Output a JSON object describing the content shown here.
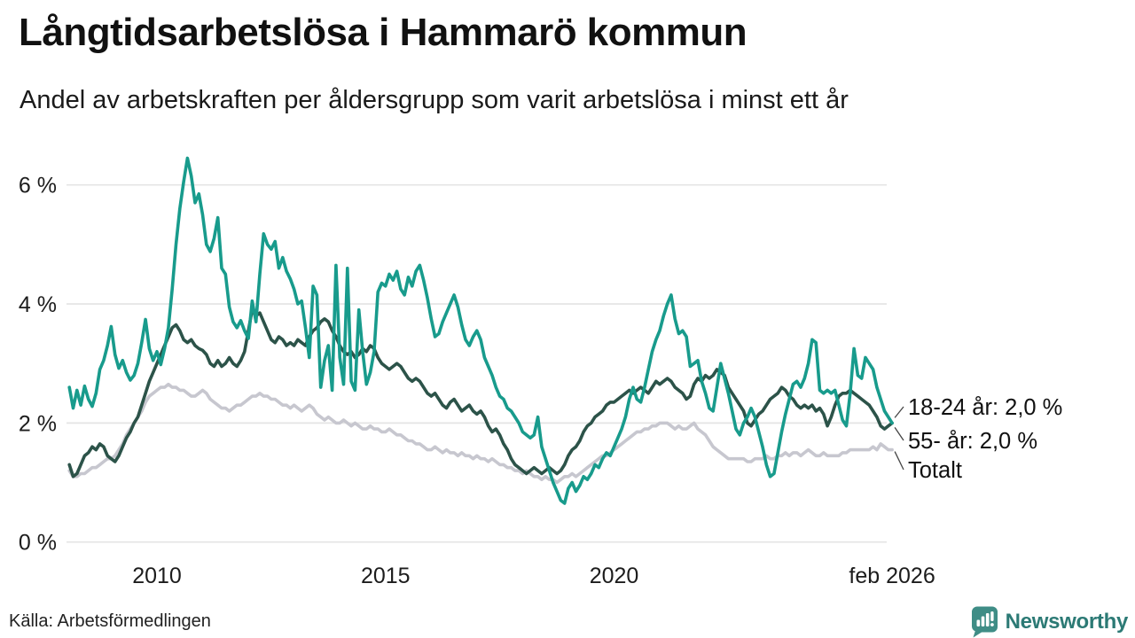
{
  "header": {
    "title": "Långtidsarbetslösa i Hammarö kommun",
    "subtitle": "Andel av arbetskraften per åldersgrupp som varit arbetslösa i minst ett år"
  },
  "footer": {
    "source": "Källa: Arbetsförmedlingen",
    "brand": "Newsworthy"
  },
  "colors": {
    "accent_teal": "#189b8c",
    "dark_green": "#2c5349",
    "light_gray": "#c7c7cf",
    "gridline": "#e4e4e4",
    "text": "#1c1c1c",
    "leader_line": "#444444",
    "logo_bubble": "#3f8d86",
    "logo_text": "#2c7a75"
  },
  "chart_data": {
    "type": "line",
    "title": "Långtidsarbetslösa i Hammarö kommun",
    "subtitle": "Andel av arbetskraften per åldersgrupp som varit arbetslösa i minst ett år",
    "xlabel": "",
    "ylabel": "",
    "x_start": 2008.0833,
    "x_step": 0.0833333,
    "x_end": 2026.0833,
    "ylim": [
      0,
      6.8
    ],
    "grid": "horizontal",
    "legend_position": "right-annotations",
    "yticks": [
      {
        "value": 0,
        "label": "0 %"
      },
      {
        "value": 2,
        "label": "2 %"
      },
      {
        "value": 4,
        "label": "4 %"
      },
      {
        "value": 6,
        "label": "6 %"
      }
    ],
    "xticks": [
      {
        "value": 2010,
        "label": "2010"
      },
      {
        "value": 2015,
        "label": "2015"
      },
      {
        "value": 2020,
        "label": "2020"
      },
      {
        "value": 2026.0833,
        "label": "feb 2026"
      }
    ],
    "series": [
      {
        "name": "18-24 år",
        "annotation": "18-24 år: 2,0 %",
        "last_value": "2,0 %",
        "color": "#189b8c",
        "values": [
          2.6,
          2.25,
          2.55,
          2.3,
          2.62,
          2.4,
          2.28,
          2.5,
          2.9,
          3.05,
          3.3,
          3.62,
          3.15,
          2.92,
          3.05,
          2.85,
          2.72,
          2.8,
          3.0,
          3.35,
          3.74,
          3.25,
          3.05,
          3.2,
          2.98,
          3.25,
          3.6,
          4.25,
          5.0,
          5.6,
          6.05,
          6.45,
          6.15,
          5.7,
          5.85,
          5.5,
          5.0,
          4.88,
          5.1,
          5.45,
          4.6,
          4.5,
          3.95,
          3.7,
          3.6,
          3.72,
          3.55,
          3.42,
          4.05,
          3.7,
          4.5,
          5.18,
          5.0,
          4.92,
          5.05,
          4.6,
          4.78,
          4.55,
          4.42,
          4.25,
          4.0,
          4.05,
          3.6,
          3.1,
          4.3,
          4.15,
          2.6,
          3.05,
          3.3,
          2.55,
          4.65,
          3.1,
          2.65,
          4.6,
          2.7,
          2.55,
          3.9,
          3.2,
          2.65,
          2.85,
          3.2,
          4.2,
          4.35,
          4.3,
          4.5,
          4.4,
          4.55,
          4.25,
          4.15,
          4.45,
          4.3,
          4.55,
          4.65,
          4.4,
          4.1,
          3.75,
          3.45,
          3.5,
          3.7,
          3.85,
          4.0,
          4.15,
          3.95,
          3.65,
          3.4,
          3.3,
          3.45,
          3.55,
          3.4,
          3.1,
          2.95,
          2.8,
          2.6,
          2.45,
          2.4,
          2.25,
          2.2,
          2.1,
          2.0,
          1.85,
          1.8,
          1.75,
          1.8,
          2.1,
          1.6,
          1.4,
          1.2,
          1.0,
          0.85,
          0.7,
          0.65,
          0.9,
          1.0,
          0.85,
          0.95,
          1.1,
          1.05,
          1.15,
          1.3,
          1.25,
          1.4,
          1.5,
          1.45,
          1.6,
          1.75,
          1.9,
          2.1,
          2.4,
          2.6,
          2.4,
          2.35,
          2.6,
          2.9,
          3.2,
          3.4,
          3.55,
          3.8,
          4.0,
          4.15,
          3.75,
          3.5,
          3.55,
          3.45,
          2.95,
          3.0,
          3.05,
          2.7,
          2.5,
          2.25,
          2.2,
          2.6,
          3.0,
          2.75,
          2.5,
          2.2,
          1.9,
          1.8,
          2.0,
          2.1,
          2.25,
          2.1,
          1.85,
          1.6,
          1.3,
          1.1,
          1.15,
          1.5,
          1.85,
          2.15,
          2.4,
          2.65,
          2.7,
          2.6,
          2.75,
          3.0,
          3.4,
          3.35,
          2.55,
          2.5,
          2.55,
          2.5,
          2.55,
          2.3,
          2.05,
          1.95,
          2.5,
          3.25,
          2.8,
          2.75,
          3.1,
          3.0,
          2.9,
          2.6,
          2.4,
          2.2,
          2.1,
          2.0
        ]
      },
      {
        "name": "55- år",
        "annotation": "55- år: 2,0 %",
        "last_value": "2,0 %",
        "color": "#2c5349",
        "values": [
          1.3,
          1.1,
          1.15,
          1.3,
          1.45,
          1.5,
          1.6,
          1.55,
          1.65,
          1.6,
          1.45,
          1.4,
          1.35,
          1.45,
          1.6,
          1.75,
          1.85,
          2.0,
          2.1,
          2.3,
          2.5,
          2.7,
          2.85,
          3.0,
          3.15,
          3.3,
          3.45,
          3.6,
          3.65,
          3.55,
          3.4,
          3.35,
          3.4,
          3.3,
          3.25,
          3.22,
          3.15,
          3.0,
          2.95,
          3.05,
          2.95,
          3.0,
          3.1,
          3.0,
          2.95,
          3.05,
          3.2,
          3.55,
          3.9,
          3.8,
          3.85,
          3.7,
          3.55,
          3.4,
          3.35,
          3.45,
          3.4,
          3.3,
          3.35,
          3.3,
          3.4,
          3.35,
          3.3,
          3.45,
          3.55,
          3.6,
          3.7,
          3.75,
          3.7,
          3.55,
          3.45,
          3.3,
          3.2,
          3.15,
          3.2,
          3.1,
          3.15,
          3.25,
          3.2,
          3.3,
          3.25,
          3.1,
          3.0,
          2.95,
          2.9,
          2.95,
          3.0,
          2.95,
          2.85,
          2.75,
          2.7,
          2.75,
          2.7,
          2.6,
          2.5,
          2.45,
          2.5,
          2.4,
          2.3,
          2.25,
          2.35,
          2.4,
          2.3,
          2.2,
          2.25,
          2.3,
          2.2,
          2.15,
          2.2,
          2.1,
          1.95,
          1.85,
          1.9,
          1.8,
          1.65,
          1.55,
          1.4,
          1.3,
          1.25,
          1.2,
          1.15,
          1.2,
          1.25,
          1.2,
          1.15,
          1.2,
          1.25,
          1.2,
          1.15,
          1.2,
          1.3,
          1.45,
          1.55,
          1.6,
          1.7,
          1.85,
          1.95,
          2.0,
          2.1,
          2.15,
          2.2,
          2.3,
          2.35,
          2.35,
          2.4,
          2.45,
          2.5,
          2.55,
          2.5,
          2.55,
          2.6,
          2.55,
          2.5,
          2.6,
          2.7,
          2.65,
          2.7,
          2.75,
          2.7,
          2.6,
          2.55,
          2.5,
          2.4,
          2.45,
          2.65,
          2.75,
          2.7,
          2.8,
          2.75,
          2.8,
          2.9,
          2.85,
          2.8,
          2.6,
          2.5,
          2.4,
          2.3,
          2.2,
          2.0,
          1.95,
          2.05,
          2.15,
          2.2,
          2.3,
          2.4,
          2.45,
          2.5,
          2.6,
          2.55,
          2.45,
          2.4,
          2.3,
          2.25,
          2.3,
          2.25,
          2.3,
          2.2,
          2.25,
          2.15,
          1.95,
          2.1,
          2.3,
          2.45,
          2.5,
          2.5,
          2.55,
          2.5,
          2.45,
          2.4,
          2.35,
          2.3,
          2.2,
          2.1,
          1.95,
          1.9,
          1.95,
          2.0
        ]
      },
      {
        "name": "Totalt",
        "annotation": "Totalt",
        "last_value": "1,55 %",
        "color": "#c7c7cf",
        "values": [
          1.2,
          1.1,
          1.1,
          1.15,
          1.15,
          1.2,
          1.25,
          1.25,
          1.3,
          1.35,
          1.4,
          1.4,
          1.45,
          1.55,
          1.65,
          1.8,
          1.9,
          2.0,
          2.1,
          2.2,
          2.35,
          2.45,
          2.5,
          2.55,
          2.6,
          2.6,
          2.65,
          2.6,
          2.6,
          2.55,
          2.55,
          2.5,
          2.45,
          2.45,
          2.5,
          2.55,
          2.5,
          2.4,
          2.35,
          2.3,
          2.25,
          2.25,
          2.2,
          2.25,
          2.3,
          2.3,
          2.35,
          2.4,
          2.45,
          2.45,
          2.5,
          2.45,
          2.45,
          2.4,
          2.4,
          2.35,
          2.3,
          2.3,
          2.25,
          2.3,
          2.25,
          2.2,
          2.25,
          2.3,
          2.25,
          2.15,
          2.1,
          2.05,
          2.1,
          2.05,
          2.0,
          2.0,
          2.05,
          2.0,
          1.95,
          2.0,
          1.95,
          1.9,
          1.9,
          1.95,
          1.9,
          1.9,
          1.85,
          1.85,
          1.9,
          1.85,
          1.8,
          1.8,
          1.75,
          1.7,
          1.7,
          1.65,
          1.65,
          1.6,
          1.55,
          1.55,
          1.6,
          1.55,
          1.5,
          1.55,
          1.5,
          1.5,
          1.45,
          1.5,
          1.45,
          1.45,
          1.4,
          1.45,
          1.4,
          1.4,
          1.35,
          1.4,
          1.35,
          1.3,
          1.3,
          1.25,
          1.25,
          1.2,
          1.2,
          1.15,
          1.2,
          1.15,
          1.1,
          1.1,
          1.05,
          1.1,
          1.05,
          1.05,
          1.0,
          1.05,
          1.1,
          1.1,
          1.15,
          1.1,
          1.15,
          1.2,
          1.25,
          1.3,
          1.35,
          1.4,
          1.45,
          1.45,
          1.5,
          1.55,
          1.6,
          1.65,
          1.7,
          1.75,
          1.8,
          1.85,
          1.85,
          1.9,
          1.9,
          1.95,
          1.95,
          2.0,
          2.0,
          2.0,
          1.95,
          1.9,
          1.95,
          1.9,
          1.9,
          1.95,
          2.0,
          1.9,
          1.85,
          1.8,
          1.7,
          1.6,
          1.55,
          1.5,
          1.45,
          1.4,
          1.4,
          1.4,
          1.4,
          1.4,
          1.35,
          1.35,
          1.4,
          1.4,
          1.4,
          1.45,
          1.4,
          1.4,
          1.45,
          1.45,
          1.5,
          1.45,
          1.5,
          1.5,
          1.45,
          1.5,
          1.55,
          1.5,
          1.45,
          1.45,
          1.5,
          1.45,
          1.45,
          1.45,
          1.45,
          1.5,
          1.5,
          1.55,
          1.55,
          1.55,
          1.55,
          1.55,
          1.55,
          1.6,
          1.55,
          1.65,
          1.6,
          1.55,
          1.55
        ]
      }
    ]
  }
}
